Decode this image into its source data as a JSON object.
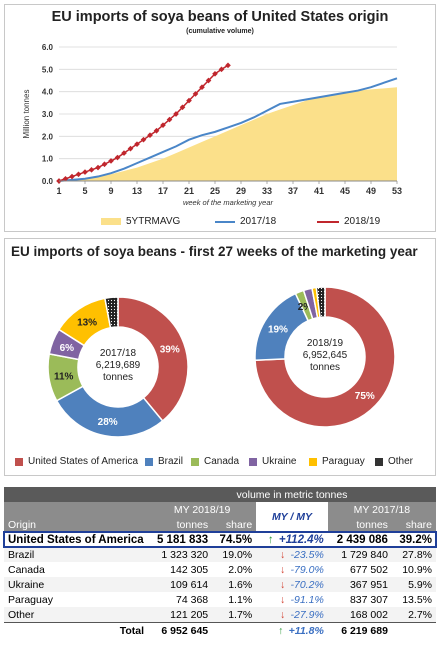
{
  "colors": {
    "us": "#c0504d",
    "brazil": "#4f81bd",
    "canada": "#9bbb59",
    "ukraine": "#8064a2",
    "paraguay": "#ffc000",
    "other": "#333333",
    "avg": "#fbe08a",
    "mm1718": "#4a86c8",
    "mm1819": "#c0262d",
    "hl": "#1f3f99"
  },
  "chart1": {
    "title": "EU imports of soya beans of United States origin",
    "subtitle": "(cumulative volume)",
    "ylabel": "Million  tonnes",
    "xlabel": "week of the marketing year",
    "yticks": [
      "0.0",
      "1.0",
      "2.0",
      "3.0",
      "4.0",
      "5.0",
      "6.0"
    ],
    "xticks": [
      "1",
      "5",
      "9",
      "13",
      "17",
      "21",
      "25",
      "29",
      "33",
      "37",
      "41",
      "45",
      "49",
      "53"
    ]
  },
  "chart_data": [
    {
      "type": "area",
      "title": "EU imports of soya beans of United States origin",
      "subtitle": "(cumulative volume)",
      "xlabel": "week of the marketing year",
      "ylabel": "Million  tonnes",
      "xlim": [
        1,
        53
      ],
      "ylim": [
        0,
        6
      ],
      "legend": "bottom",
      "grid": true,
      "series": [
        {
          "name": "5YTRMAVG",
          "type": "area",
          "x": [
            1,
            3,
            5,
            7,
            9,
            11,
            13,
            15,
            17,
            19,
            21,
            23,
            25,
            27,
            29,
            31,
            33,
            35,
            37,
            39,
            41,
            43,
            45,
            47,
            49,
            51,
            53
          ],
          "values": [
            0,
            0.05,
            0.12,
            0.2,
            0.3,
            0.45,
            0.6,
            0.8,
            1.0,
            1.25,
            1.5,
            1.75,
            2.0,
            2.25,
            2.5,
            2.75,
            3.0,
            3.2,
            3.4,
            3.6,
            3.75,
            3.85,
            3.95,
            4.05,
            4.1,
            4.15,
            4.2
          ]
        },
        {
          "name": "2017/18",
          "type": "line",
          "x": [
            1,
            3,
            5,
            7,
            9,
            11,
            13,
            15,
            17,
            19,
            21,
            23,
            25,
            27,
            29,
            31,
            33,
            35,
            37,
            39,
            41,
            43,
            45,
            47,
            49,
            51,
            53
          ],
          "values": [
            0,
            0.05,
            0.1,
            0.2,
            0.35,
            0.55,
            0.8,
            1.05,
            1.3,
            1.55,
            1.85,
            2.05,
            2.2,
            2.4,
            2.6,
            2.85,
            3.15,
            3.45,
            3.55,
            3.65,
            3.75,
            3.85,
            3.95,
            4.05,
            4.2,
            4.4,
            4.6
          ]
        },
        {
          "name": "2018/19",
          "type": "line",
          "x": [
            1,
            2,
            3,
            4,
            5,
            6,
            7,
            8,
            9,
            10,
            11,
            12,
            13,
            14,
            15,
            16,
            17,
            18,
            19,
            20,
            21,
            22,
            23,
            24,
            25,
            26,
            27
          ],
          "values": [
            0,
            0.1,
            0.2,
            0.3,
            0.4,
            0.5,
            0.6,
            0.75,
            0.9,
            1.05,
            1.25,
            1.45,
            1.65,
            1.85,
            2.05,
            2.25,
            2.5,
            2.75,
            3.0,
            3.3,
            3.6,
            3.9,
            4.2,
            4.5,
            4.8,
            5.0,
            5.18
          ]
        }
      ]
    },
    {
      "type": "pie",
      "title": "2017/18",
      "center_text": [
        "2017/18",
        "6,219,689",
        "tonnes"
      ],
      "categories": [
        "United States of America",
        "Brazil",
        "Canada",
        "Ukraine",
        "Paraguay",
        "Other"
      ],
      "values": [
        39,
        28,
        11,
        6,
        13,
        3
      ],
      "labels": [
        "39%",
        "28%",
        "11%",
        "6%",
        "13%",
        ""
      ]
    },
    {
      "type": "pie",
      "title": "2018/19",
      "center_text": [
        "2018/19",
        "6,952,645",
        "tonnes"
      ],
      "categories": [
        "United States of America",
        "Brazil",
        "Canada",
        "Ukraine",
        "Paraguay",
        "Other"
      ],
      "values": [
        75,
        19,
        2,
        2,
        1,
        2
      ],
      "labels": [
        "75%",
        "19%",
        "2%",
        "",
        "",
        ""
      ]
    }
  ],
  "chart2": {
    "title": "EU imports of soya beans - first 27 weeks of the marketing year",
    "legend": [
      "United States of America",
      "Brazil",
      "Canada",
      "Ukraine",
      "Paraguay",
      "Other"
    ]
  },
  "table": {
    "header_volume": "volume in metric tonnes",
    "origin": "Origin",
    "my1819": "MY 2018/19",
    "my1718": "MY 2017/18",
    "mymy": "MY / MY",
    "tonnes": "tonnes",
    "share": "share",
    "rows": [
      {
        "origin": "United States of America",
        "t1": "5 181 833",
        "s1": "74.5%",
        "dir": "up",
        "chg": "+112.4%",
        "t2": "2 439 086",
        "s2": "39.2%"
      },
      {
        "origin": "Brazil",
        "t1": "1 323 320",
        "s1": "19.0%",
        "dir": "down",
        "chg": "-23.5%",
        "t2": "1 729 840",
        "s2": "27.8%"
      },
      {
        "origin": "Canada",
        "t1": "142 305",
        "s1": "2.0%",
        "dir": "down",
        "chg": "-79.0%",
        "t2": "677 502",
        "s2": "10.9%"
      },
      {
        "origin": "Ukraine",
        "t1": "109 614",
        "s1": "1.6%",
        "dir": "down",
        "chg": "-70.2%",
        "t2": "367 951",
        "s2": "5.9%"
      },
      {
        "origin": "Paraguay",
        "t1": "74 368",
        "s1": "1.1%",
        "dir": "down",
        "chg": "-91.1%",
        "t2": "837 307",
        "s2": "13.5%"
      },
      {
        "origin": "Other",
        "t1": "121 205",
        "s1": "1.7%",
        "dir": "down",
        "chg": "-27.9%",
        "t2": "168 002",
        "s2": "2.7%"
      }
    ],
    "total": {
      "label": "Total",
      "t1": "6 952 645",
      "dir": "up",
      "chg": "+11.8%",
      "t2": "6 219 689"
    }
  }
}
